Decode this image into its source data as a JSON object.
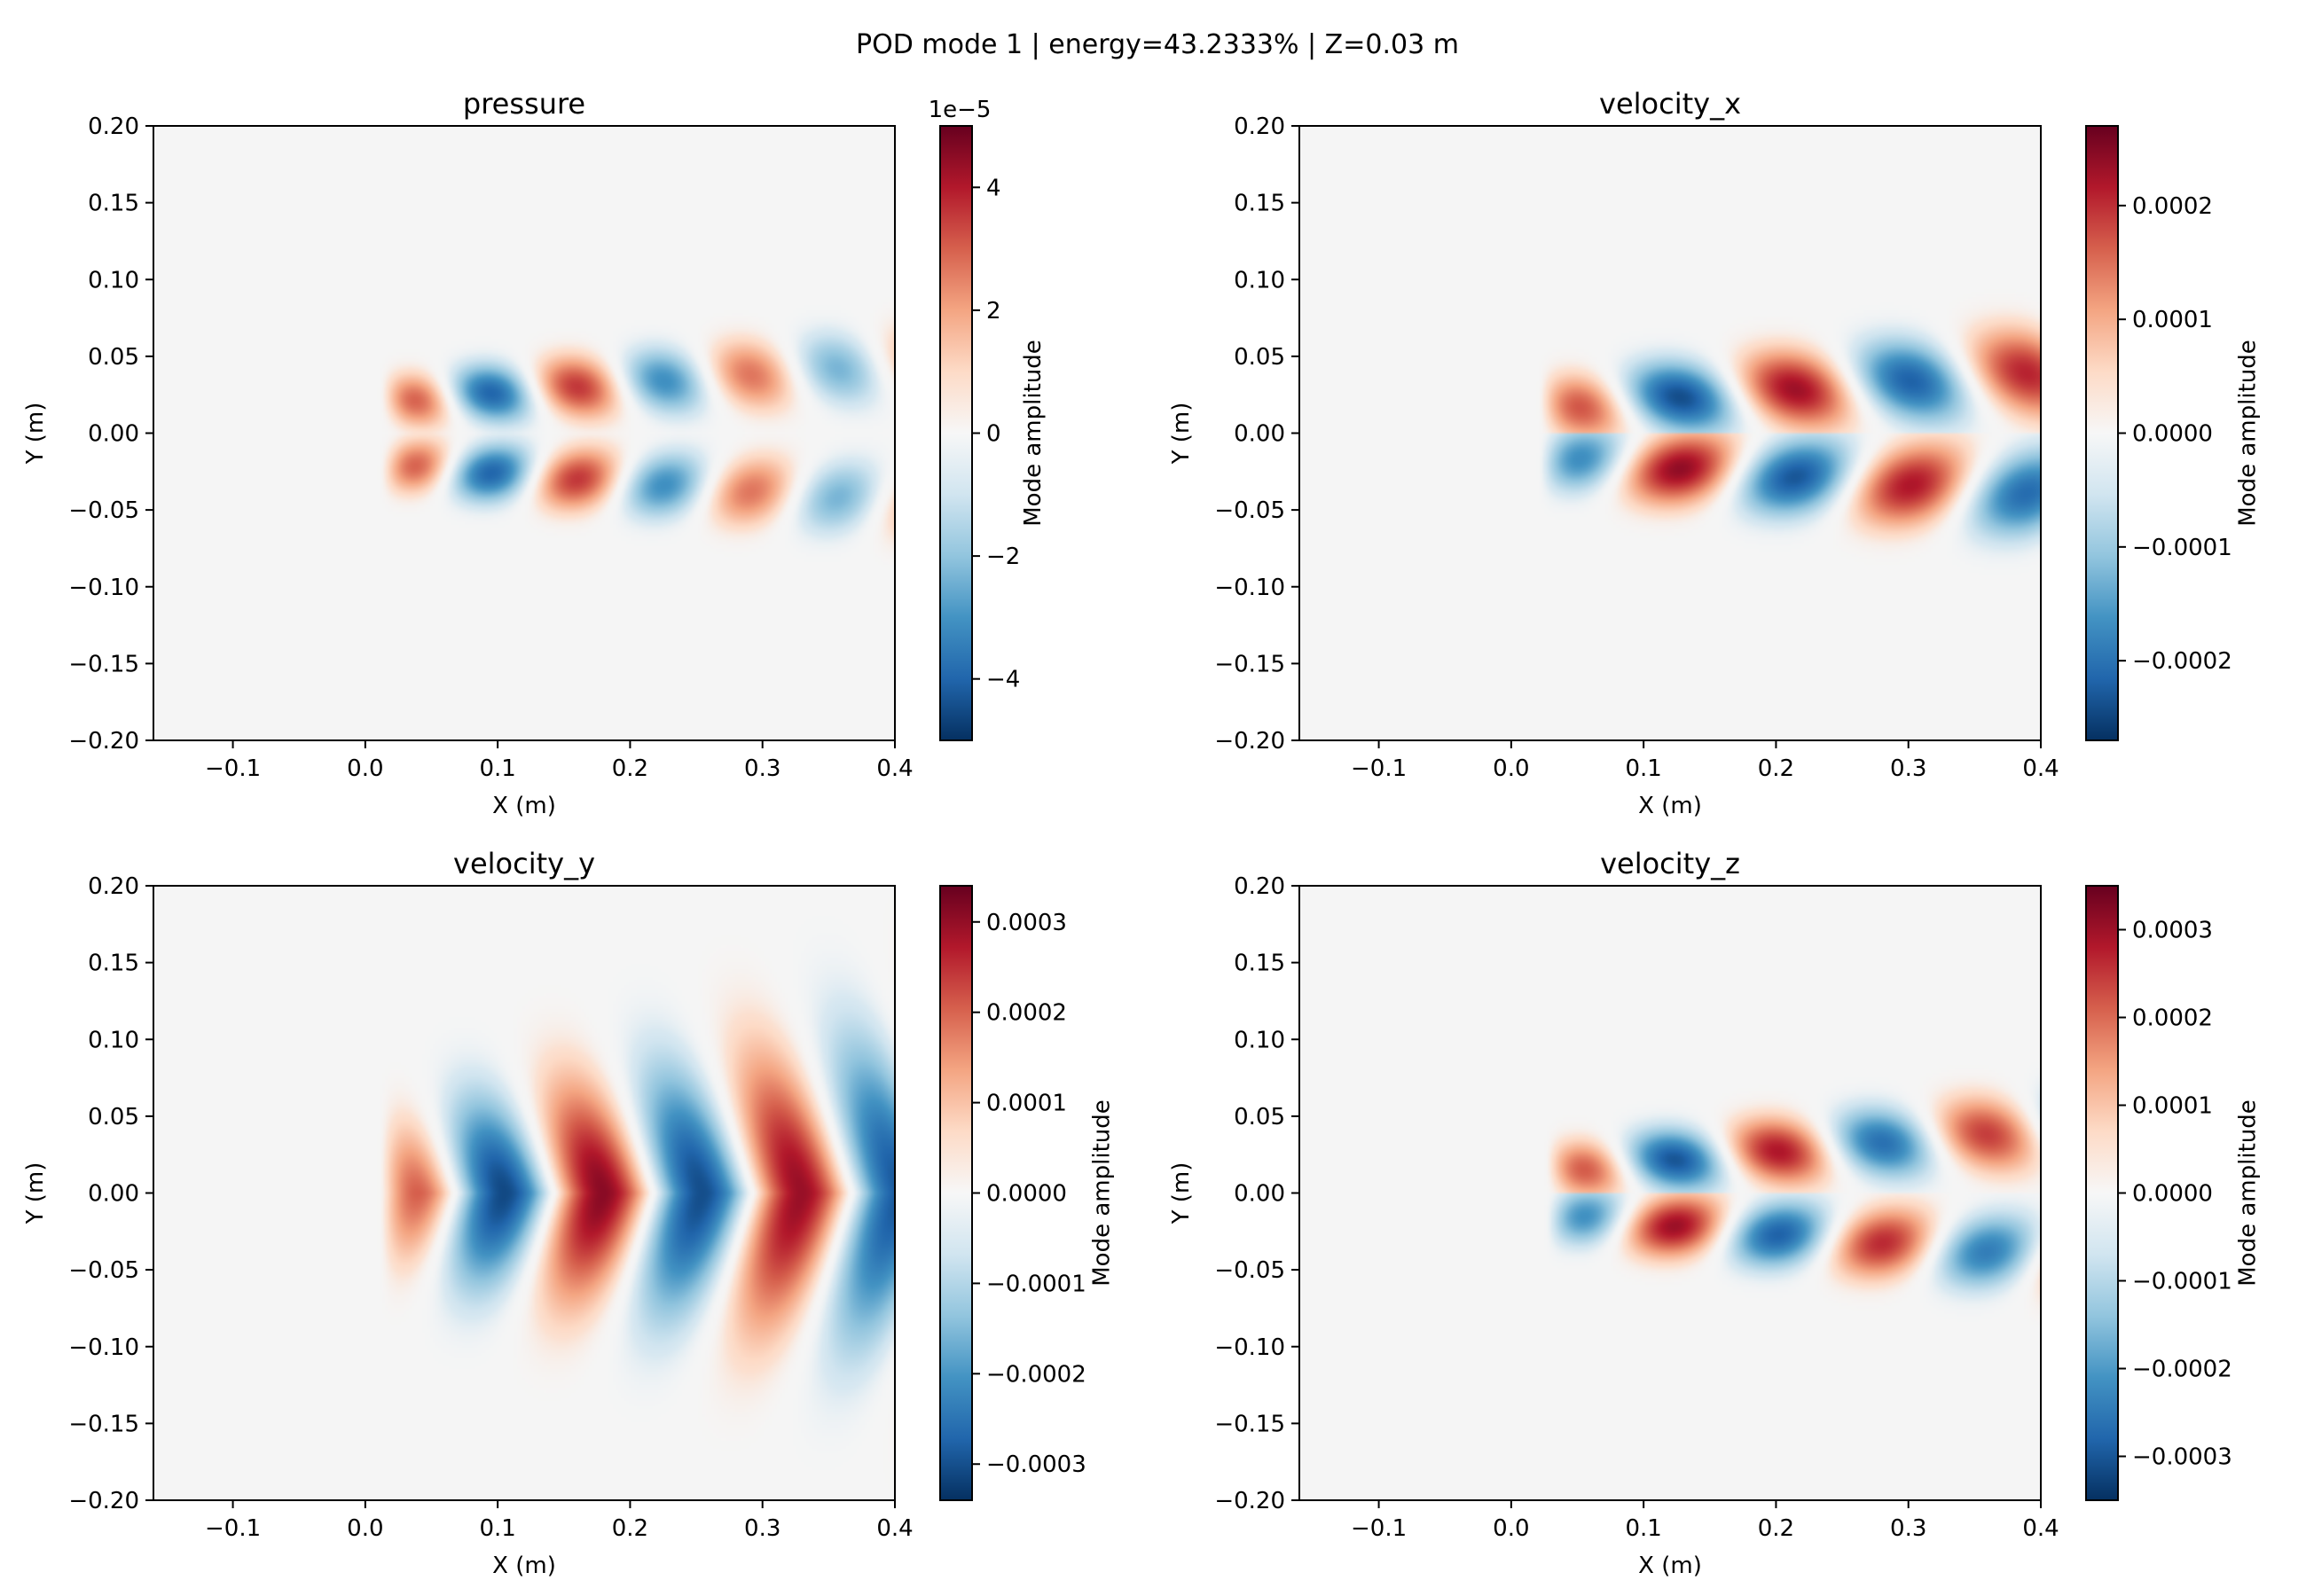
{
  "figure": {
    "suptitle": "POD mode 1 | energy=43.2333% | Z=0.03 m"
  },
  "colormap": {
    "name": "RdBu_r",
    "stops": [
      "#053061",
      "#2166ac",
      "#4393c3",
      "#92c5de",
      "#d1e5f0",
      "#f7f7f7",
      "#fddbc7",
      "#f4a582",
      "#d6604d",
      "#b2182b",
      "#67001f"
    ],
    "background": "#f5f5f5"
  },
  "chart_data": [
    {
      "type": "heatmap",
      "title": "pressure",
      "xlabel": "X (m)",
      "ylabel": "Y (m)",
      "xlim": [
        -0.16,
        0.4
      ],
      "ylim": [
        -0.2,
        0.2
      ],
      "xticks": [
        "−0.1",
        "0.0",
        "0.1",
        "0.2",
        "0.3",
        "0.4"
      ],
      "xtick_values": [
        -0.1,
        0.0,
        0.1,
        0.2,
        0.3,
        0.4
      ],
      "yticks": [
        "−0.20",
        "−0.15",
        "−0.10",
        "−0.05",
        "0.00",
        "0.05",
        "0.10",
        "0.15",
        "0.20"
      ],
      "ytick_values": [
        -0.2,
        -0.15,
        -0.1,
        -0.05,
        0.0,
        0.05,
        0.1,
        0.15,
        0.2
      ],
      "colorbar": {
        "label": "Mode amplitude",
        "range": [
          -5e-05,
          5e-05
        ],
        "offset_text": "1e−5",
        "ticks": [
          "−4",
          "−2",
          "0",
          "2",
          "4"
        ],
        "tick_values": [
          -4e-05,
          -2e-05,
          0,
          2e-05,
          4e-05
        ]
      },
      "field": {
        "amp": 5e-05,
        "k": 48,
        "x0": 0.03,
        "y0": 0.022,
        "sy": 0.013,
        "yslope": 0.06,
        "ysig": 0.06,
        "decay": 2.2,
        "sym": "even",
        "core": 0.0
      }
    },
    {
      "type": "heatmap",
      "title": "velocity_x",
      "xlabel": "X (m)",
      "ylabel": "Y (m)",
      "xlim": [
        -0.16,
        0.4
      ],
      "ylim": [
        -0.2,
        0.2
      ],
      "xticks": [
        "−0.1",
        "0.0",
        "0.1",
        "0.2",
        "0.3",
        "0.4"
      ],
      "xtick_values": [
        -0.1,
        0.0,
        0.1,
        0.2,
        0.3,
        0.4
      ],
      "yticks": [
        "−0.20",
        "−0.15",
        "−0.10",
        "−0.05",
        "0.00",
        "0.05",
        "0.10",
        "0.15",
        "0.20"
      ],
      "ytick_values": [
        -0.2,
        -0.15,
        -0.1,
        -0.05,
        0.0,
        0.05,
        0.1,
        0.15,
        0.2
      ],
      "colorbar": {
        "label": "Mode amplitude",
        "range": [
          -0.00027,
          0.00027
        ],
        "offset_text": "",
        "ticks": [
          "−0.0002",
          "−0.0001",
          "0.0000",
          "0.0001",
          "0.0002"
        ],
        "tick_values": [
          -0.0002,
          -0.0001,
          0.0,
          0.0001,
          0.0002
        ]
      },
      "field": {
        "amp": 0.00027,
        "k": 36,
        "x0": 0.04,
        "y0": 0.018,
        "sy": 0.016,
        "yslope": 0.06,
        "ysig": 0.06,
        "decay": 0.6,
        "sym": "odd",
        "core": 0.0
      }
    },
    {
      "type": "heatmap",
      "title": "velocity_y",
      "xlabel": "X (m)",
      "ylabel": "Y (m)",
      "xlim": [
        -0.16,
        0.4
      ],
      "ylim": [
        -0.2,
        0.2
      ],
      "xticks": [
        "−0.1",
        "0.0",
        "0.1",
        "0.2",
        "0.3",
        "0.4"
      ],
      "xtick_values": [
        -0.1,
        0.0,
        0.1,
        0.2,
        0.3,
        0.4
      ],
      "yticks": [
        "−0.20",
        "−0.15",
        "−0.10",
        "−0.05",
        "0.00",
        "0.05",
        "0.10",
        "0.15",
        "0.20"
      ],
      "ytick_values": [
        -0.2,
        -0.15,
        -0.1,
        -0.05,
        0.0,
        0.05,
        0.1,
        0.15,
        0.2
      ],
      "colorbar": {
        "label": "Mode amplitude",
        "range": [
          -0.00034,
          0.00034
        ],
        "offset_text": "",
        "ticks": [
          "−0.0003",
          "−0.0002",
          "−0.0001",
          "0.0000",
          "0.0001",
          "0.0002",
          "0.0003"
        ],
        "tick_values": [
          -0.0003,
          -0.0002,
          -0.0001,
          0.0,
          0.0001,
          0.0002,
          0.0003
        ]
      },
      "field": {
        "amp": 0.00034,
        "k": 42,
        "x0": 0.03,
        "y0": 0.0,
        "sy": 0.04,
        "yslope": 0.0,
        "ysig": 0.0,
        "decay": 0.3,
        "sym": "even",
        "core": 1.0,
        "chevron": 0.5
      }
    },
    {
      "type": "heatmap",
      "title": "velocity_z",
      "xlabel": "X (m)",
      "ylabel": "Y (m)",
      "xlim": [
        -0.16,
        0.4
      ],
      "ylim": [
        -0.2,
        0.2
      ],
      "xticks": [
        "−0.1",
        "0.0",
        "0.1",
        "0.2",
        "0.3",
        "0.4"
      ],
      "xtick_values": [
        -0.1,
        0.0,
        0.1,
        0.2,
        0.3,
        0.4
      ],
      "yticks": [
        "−0.20",
        "−0.15",
        "−0.10",
        "−0.05",
        "0.00",
        "0.05",
        "0.10",
        "0.15",
        "0.20"
      ],
      "ytick_values": [
        -0.2,
        -0.15,
        -0.1,
        -0.05,
        0.0,
        0.05,
        0.1,
        0.15,
        0.2
      ],
      "colorbar": {
        "label": "Mode amplitude",
        "range": [
          -0.00035,
          0.00035
        ],
        "offset_text": "",
        "ticks": [
          "−0.0003",
          "−0.0002",
          "−0.0001",
          "0.0000",
          "0.0001",
          "0.0002",
          "0.0003"
        ],
        "tick_values": [
          -0.0003,
          -0.0002,
          -0.0001,
          0.0,
          0.0001,
          0.0002,
          0.0003
        ]
      },
      "field": {
        "amp": 0.00035,
        "k": 40,
        "x0": 0.045,
        "y0": 0.016,
        "sy": 0.014,
        "yslope": 0.07,
        "ysig": 0.05,
        "decay": 1.0,
        "sym": "odd",
        "core": 0.0
      }
    }
  ]
}
